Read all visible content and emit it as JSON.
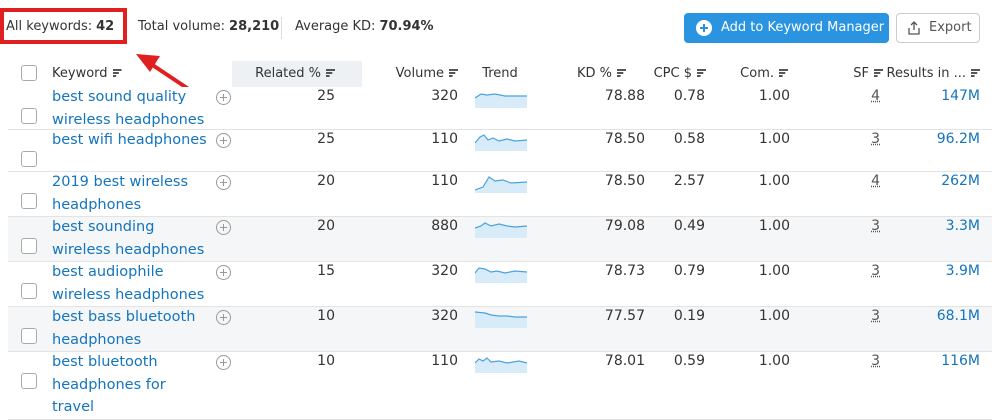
{
  "summary": [
    {
      "label": "All keywords:",
      "value": "42"
    },
    {
      "label": "Total volume:",
      "value": "28,210"
    },
    {
      "label": "Average KD:",
      "value": "70.94%"
    }
  ],
  "actions": {
    "add": "Add to Keyword Manager",
    "export": "Export"
  },
  "table": {
    "columns": [
      "Keyword",
      "Related %",
      "Volume",
      "Trend",
      "KD %",
      "CPC $",
      "Com.",
      "SF",
      "Results in ..."
    ],
    "rows": [
      [
        "best sound quality wireless headphones",
        "25",
        "320",
        "78.88",
        "0.78",
        "1.00",
        "4",
        "147M"
      ],
      [
        "best wifi headphones",
        "25",
        "110",
        "78.50",
        "0.58",
        "1.00",
        "3",
        "96.2M"
      ],
      [
        "2019 best wireless headphones",
        "20",
        "110",
        "78.50",
        "2.57",
        "1.00",
        "4",
        "262M"
      ],
      [
        "best sounding wireless headphones",
        "20",
        "880",
        "79.08",
        "0.49",
        "1.00",
        "3",
        "3.3M"
      ],
      [
        "best audiophile wireless headphones",
        "15",
        "320",
        "78.73",
        "0.79",
        "1.00",
        "3",
        "3.9M"
      ],
      [
        "best bass bluetooth headphones",
        "10",
        "320",
        "77.57",
        "0.19",
        "1.00",
        "3",
        "68.1M"
      ],
      [
        "best bluetooth headphones for travel",
        "10",
        "110",
        "78.01",
        "0.59",
        "1.00",
        "3",
        "116M"
      ]
    ]
  }
}
